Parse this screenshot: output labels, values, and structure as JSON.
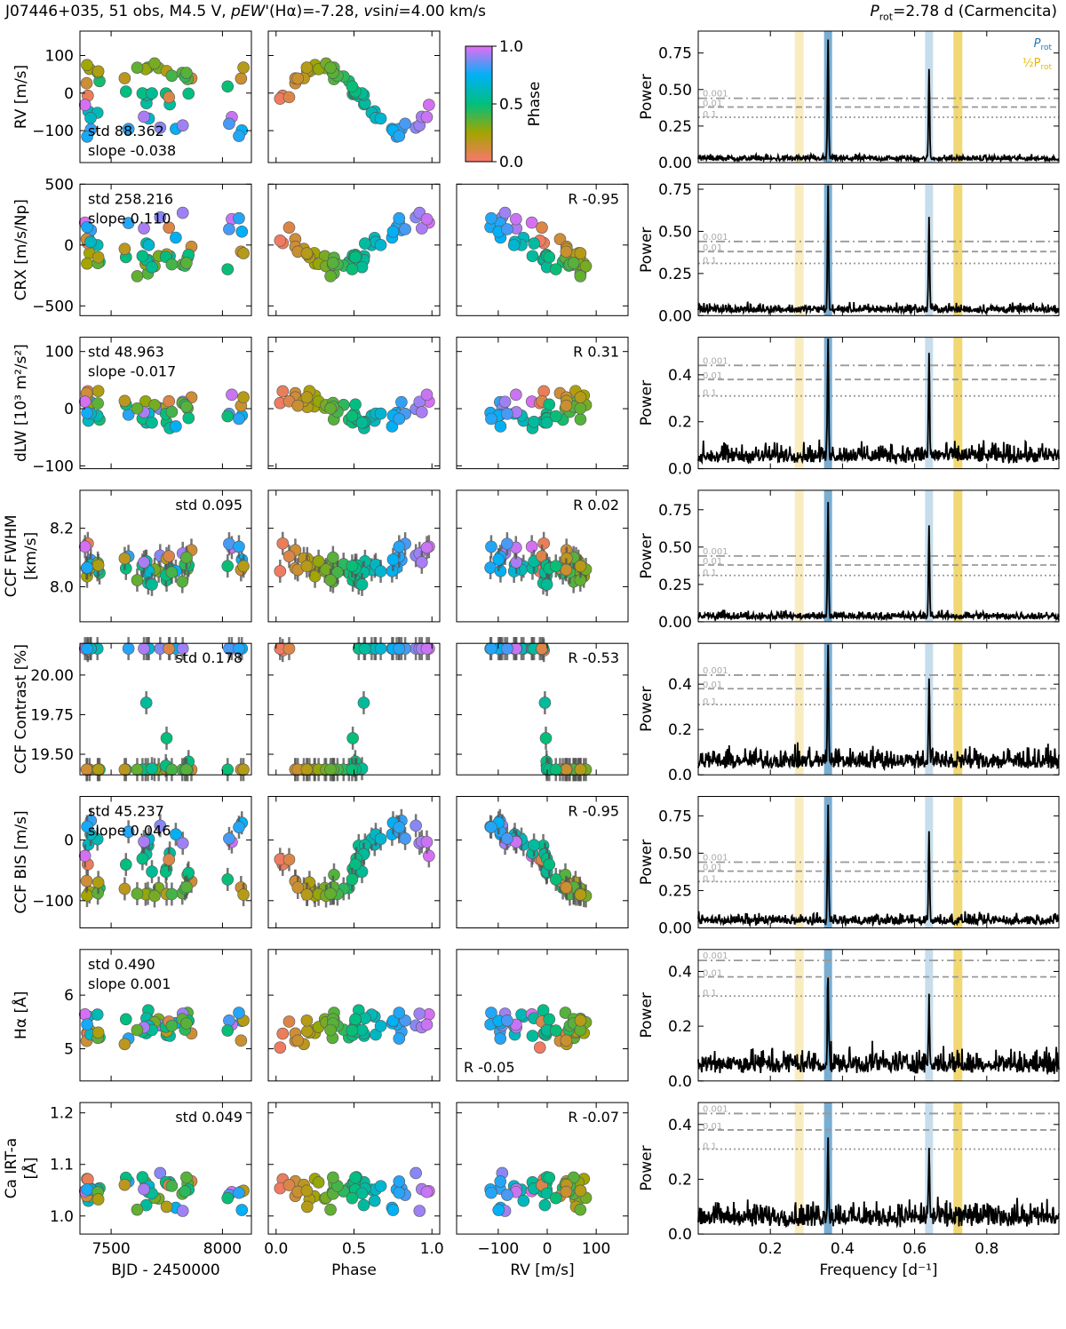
{
  "header": {
    "left_parts": [
      {
        "t": "J07446+035, 51 obs, M4.5 V, ",
        "i": false
      },
      {
        "t": "pEW'",
        "i": true
      },
      {
        "t": "(Hα)=-7.28, ",
        "i": false
      },
      {
        "t": "v",
        "i": true
      },
      {
        "t": "sin",
        "i": false
      },
      {
        "t": "i",
        "i": true
      },
      {
        "t": "=4.00 km/s",
        "i": false
      }
    ],
    "right_parts": [
      {
        "t": "P",
        "i": true
      },
      {
        "t": "rot",
        "i": false,
        "sub": true
      },
      {
        "t": "=2.78 d (Carmencita)",
        "i": false
      }
    ]
  },
  "colors": {
    "prot_band": "#1f77b4",
    "half_prot_band": "#e6b800",
    "periodogram_line": "#000000",
    "fap_line": "#999999",
    "errorbar": "#555555"
  },
  "colorbar": {
    "label": "Phase",
    "ticks": [
      "0.0",
      "0.5",
      "1.0"
    ],
    "stops": [
      "#f8766d",
      "#a3a500",
      "#00bf7d",
      "#00b0f6",
      "#e76bf3"
    ]
  },
  "columns": {
    "time_xlabel": "BJD - 2450000",
    "phase_xlabel": "Phase",
    "rv_xlabel": "RV [m/s]",
    "freq_xlabel": "Frequency [d⁻¹]",
    "power_ylabel": "Power",
    "time_ticks": [
      "7500",
      "8000"
    ],
    "phase_ticks": [
      "0.0",
      "0.5",
      "1.0"
    ],
    "rv_ticks": [
      "−100",
      "0",
      "100"
    ],
    "freq_ticks": [
      "0.2",
      "0.4",
      "0.6",
      "0.8"
    ]
  },
  "legend": {
    "prot": "P",
    "prot_sub": "rot",
    "half": "½P",
    "half_sub": "rot"
  },
  "fap_labels": [
    "0.001",
    "0.01",
    "0.1"
  ],
  "chart_data": {
    "type": "scatter",
    "n_obs": 51,
    "time_range": [
      7360,
      8130
    ],
    "rv_range": [
      -185,
      165
    ],
    "periodogram": {
      "x_range": [
        0.0,
        1.0
      ],
      "prot_freq": 0.36,
      "alias_freq": 0.64,
      "half_prot_freq": 0.72,
      "half_alias_freq": 0.28
    },
    "rows": [
      {
        "ylabel": [
          "RV [m/s]"
        ],
        "ylim": [
          -185,
          165
        ],
        "yticks": [
          -100,
          0,
          100
        ],
        "ytick_labels": [
          "−100",
          "0",
          "100"
        ],
        "center": -15,
        "amp": 85,
        "noise": 32,
        "stats": [
          "std 88.362",
          "slope -0.038"
        ],
        "stats_pos": "bottom-left",
        "corr": null,
        "corr_pos": null,
        "pg_ylim": [
          0,
          0.9
        ],
        "pg_ticks": [
          0.0,
          0.25,
          0.5,
          0.75
        ],
        "pg_tick_labels": [
          "0.00",
          "0.25",
          "0.50",
          "0.75"
        ],
        "pg_noise": 0.045,
        "pg_peak": 0.82,
        "pg_alias": 0.62,
        "fap": [
          0.44,
          0.38,
          0.31
        ],
        "errbars": false
      },
      {
        "ylabel": [
          "CRX [m/s/Np]"
        ],
        "ylim": [
          -580,
          500
        ],
        "yticks": [
          -500,
          0,
          500
        ],
        "ytick_labels": [
          "−500",
          "0",
          "500"
        ],
        "center": -20,
        "amp": 330,
        "noise": 100,
        "stats": [
          "std 258.216",
          "slope 0.110"
        ],
        "stats_pos": "top-left",
        "corr": "R -0.95",
        "corr_slope": -2.8,
        "corr_pos": "top-right",
        "pg_ylim": [
          0,
          0.78
        ],
        "pg_ticks": [
          0.0,
          0.25,
          0.5,
          0.75
        ],
        "pg_tick_labels": [
          "0.00",
          "0.25",
          "0.50",
          "0.75"
        ],
        "pg_noise": 0.06,
        "pg_peak": 0.71,
        "pg_alias": 0.55,
        "fap": [
          0.44,
          0.38,
          0.31
        ],
        "errbars": false
      },
      {
        "ylabel": [
          "dLW [10³ m²/s²]"
        ],
        "ylim": [
          -105,
          125
        ],
        "yticks": [
          -100,
          0,
          100
        ],
        "ytick_labels": [
          "−100",
          "0",
          "100"
        ],
        "center": 0,
        "amp": 50,
        "noise": 25,
        "stats": [
          "std 48.963",
          "slope -0.017"
        ],
        "stats_pos": "top-left",
        "corr": "R 0.31",
        "corr_slope": 0.1,
        "corr_pos": "top-right",
        "pg_ylim": [
          0,
          0.56
        ],
        "pg_ticks": [
          0.0,
          0.2,
          0.4
        ],
        "pg_tick_labels": [
          "0.0",
          "0.2",
          "0.4"
        ],
        "pg_noise": 0.09,
        "pg_peak": 0.54,
        "pg_alias": 0.44,
        "fap": [
          0.44,
          0.38,
          0.31
        ],
        "errbars": false
      },
      {
        "ylabel": [
          "CCF FWHM",
          "[km/s]"
        ],
        "ylim": [
          7.88,
          8.33
        ],
        "yticks": [
          8.0,
          8.2
        ],
        "ytick_labels": [
          "8.0",
          "8.2"
        ],
        "center": 8.08,
        "amp": 0.1,
        "noise": 0.07,
        "stats": [
          "std 0.095"
        ],
        "stats_pos": "top-right",
        "corr": "R 0.02",
        "corr_slope": 0.0,
        "corr_pos": "top-right",
        "pg_ylim": [
          0,
          0.88
        ],
        "pg_ticks": [
          0.0,
          0.25,
          0.5,
          0.75
        ],
        "pg_tick_labels": [
          "0.00",
          "0.25",
          "0.50",
          "0.75"
        ],
        "pg_noise": 0.06,
        "pg_peak": 0.77,
        "pg_alias": 0.6,
        "fap": [
          0.44,
          0.38,
          0.31
        ],
        "errbars": true
      },
      {
        "ylabel": [
          "CCF Contrast [%]"
        ],
        "ylim": [
          19.37,
          20.2
        ],
        "yticks": [
          19.5,
          19.75,
          20.0
        ],
        "ytick_labels": [
          "19.50",
          "19.75",
          "20.00"
        ],
        "center": 19.8,
        "amp": 0.16,
        "noise": 0.11,
        "stats": [
          "std 0.178"
        ],
        "stats_pos": "top-right",
        "corr": "R -0.53",
        "corr_slope": -0.0012,
        "corr_pos": "top-right",
        "pg_ylim": [
          0,
          0.58
        ],
        "pg_ticks": [
          0.0,
          0.2,
          0.4
        ],
        "pg_tick_labels": [
          "0.0",
          "0.2",
          "0.4"
        ],
        "pg_noise": 0.1,
        "pg_peak": 0.55,
        "pg_alias": 0.36,
        "fap": [
          0.44,
          0.38,
          0.31
        ],
        "errbars": true
      },
      {
        "ylabel": [
          "CCF BIS [m/s]"
        ],
        "ylim": [
          -145,
          72
        ],
        "yticks": [
          -100,
          0
        ],
        "ytick_labels": [
          "−100",
          "0"
        ],
        "center": -40,
        "amp": 45,
        "noise": 25,
        "stats": [
          "std 45.237",
          "slope 0.046"
        ],
        "stats_pos": "top-left",
        "corr": "R -0.95",
        "corr_slope": -0.5,
        "corr_pos": "top-right",
        "pg_ylim": [
          0,
          0.88
        ],
        "pg_ticks": [
          0.0,
          0.25,
          0.5,
          0.75
        ],
        "pg_tick_labels": [
          "0.00",
          "0.25",
          "0.50",
          "0.75"
        ],
        "pg_noise": 0.08,
        "pg_peak": 0.79,
        "pg_alias": 0.62,
        "fap": [
          0.44,
          0.38,
          0.31
        ],
        "errbars": true
      },
      {
        "ylabel": [
          "Hα [Å]"
        ],
        "ylim": [
          4.4,
          6.85
        ],
        "yticks": [
          5,
          6
        ],
        "ytick_labels": [
          "5",
          "6"
        ],
        "center": 5.4,
        "amp": 0.15,
        "noise": 0.45,
        "stats": [
          "std 0.490",
          "slope 0.001"
        ],
        "stats_pos": "top-left",
        "corr": "R -0.05",
        "corr_slope": 0.0,
        "corr_pos": "bottom-left",
        "pg_ylim": [
          0,
          0.48
        ],
        "pg_ticks": [
          0.0,
          0.2,
          0.4
        ],
        "pg_tick_labels": [
          "0.0",
          "0.2",
          "0.4"
        ],
        "pg_noise": 0.1,
        "pg_peak": 0.33,
        "pg_alias": 0.22,
        "fap": [
          0.44,
          0.38,
          0.31
        ],
        "errbars": false
      },
      {
        "ylabel": [
          "Ca IRT-a",
          "[Å]"
        ],
        "ylim": [
          0.965,
          1.22
        ],
        "yticks": [
          1.0,
          1.1,
          1.2
        ],
        "ytick_labels": [
          "1.0",
          "1.1",
          "1.2"
        ],
        "center": 1.05,
        "amp": 0.02,
        "noise": 0.045,
        "stats": [
          "std 0.049"
        ],
        "stats_pos": "top-right",
        "corr": "R -0.07",
        "corr_slope": 0.0,
        "corr_pos": "top-right",
        "pg_ylim": [
          0,
          0.48
        ],
        "pg_ticks": [
          0.0,
          0.2,
          0.4
        ],
        "pg_tick_labels": [
          "0.0",
          "0.2",
          "0.4"
        ],
        "pg_noise": 0.1,
        "pg_peak": 0.3,
        "pg_alias": 0.25,
        "fap": [
          0.44,
          0.38,
          0.31
        ],
        "errbars": false
      }
    ]
  }
}
